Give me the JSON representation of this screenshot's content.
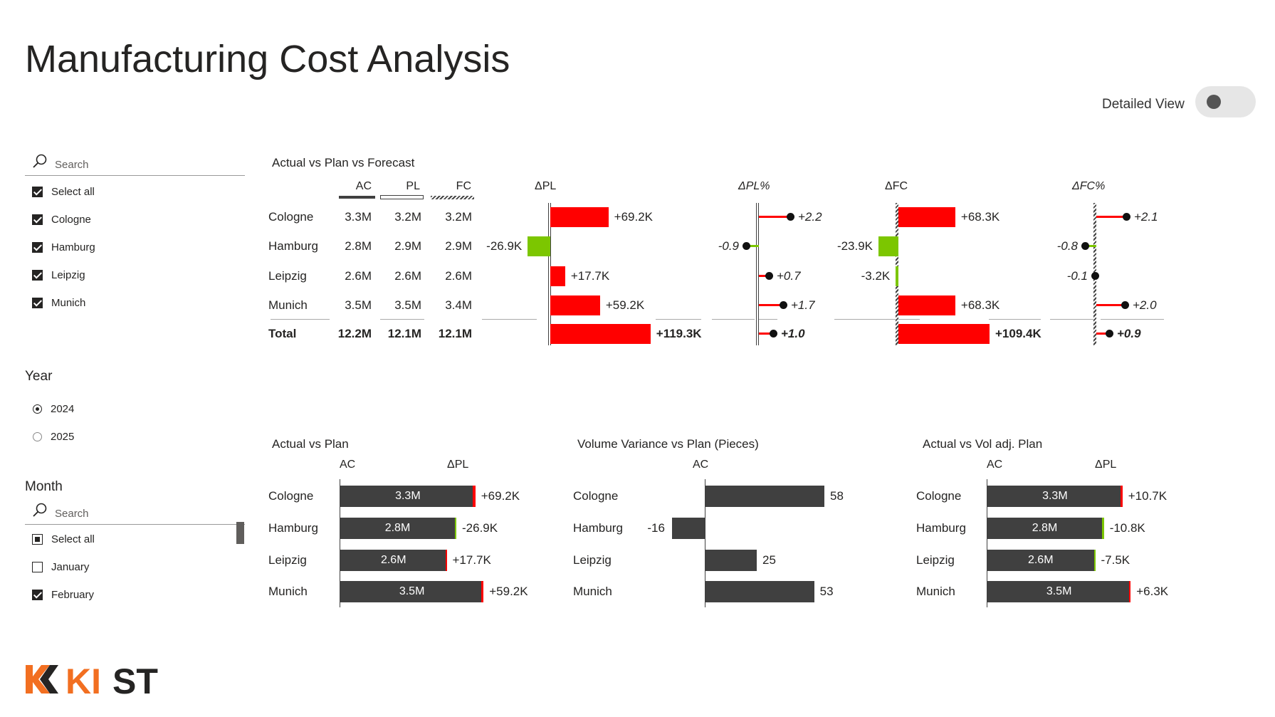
{
  "page": {
    "title": "Manufacturing Cost Analysis",
    "detailed_view_label": "Detailed View",
    "detailed_view_on": false
  },
  "city_slicer": {
    "search_placeholder": "Search",
    "items": [
      {
        "label": "Select all",
        "checked": true
      },
      {
        "label": "Cologne",
        "checked": true
      },
      {
        "label": "Hamburg",
        "checked": true
      },
      {
        "label": "Leipzig",
        "checked": true
      },
      {
        "label": "Munich",
        "checked": true
      }
    ]
  },
  "year_slicer": {
    "label": "Year",
    "options": [
      {
        "label": "2024",
        "selected": true
      },
      {
        "label": "2025",
        "selected": false
      }
    ]
  },
  "month_slicer": {
    "label": "Month",
    "search_placeholder": "Search",
    "items": [
      {
        "label": "Select all",
        "state": "partial"
      },
      {
        "label": "January",
        "state": "off"
      },
      {
        "label": "February",
        "state": "on"
      }
    ]
  },
  "colors": {
    "positive_variance": "#ff0000",
    "negative_variance": "#7cc600",
    "actual_bar": "#404040",
    "logo_orange": "#f26f21",
    "logo_dark": "#252423"
  },
  "visual1": {
    "title": "Actual vs Plan vs Forecast",
    "headers": {
      "ac": "AC",
      "pl": "PL",
      "fc": "FC",
      "dpl": "ΔPL",
      "dpl_pct": "ΔPL%",
      "dfc": "ΔFC",
      "dfc_pct": "ΔFC%"
    },
    "rows": [
      {
        "city": "Cologne",
        "ac": "3.3M",
        "pl": "3.2M",
        "fc": "3.2M",
        "dpl": 69.2,
        "dpl_label": "+69.2K",
        "dpl_pct": 2.2,
        "dpl_pct_label": "+2.2",
        "dfc": 68.3,
        "dfc_label": "+68.3K",
        "dfc_pct": 2.1,
        "dfc_pct_label": "+2.1"
      },
      {
        "city": "Hamburg",
        "ac": "2.8M",
        "pl": "2.9M",
        "fc": "2.9M",
        "dpl": -26.9,
        "dpl_label": "-26.9K",
        "dpl_pct": -0.9,
        "dpl_pct_label": "-0.9",
        "dfc": -23.9,
        "dfc_label": "-23.9K",
        "dfc_pct": -0.8,
        "dfc_pct_label": "-0.8"
      },
      {
        "city": "Leipzig",
        "ac": "2.6M",
        "pl": "2.6M",
        "fc": "2.6M",
        "dpl": 17.7,
        "dpl_label": "+17.7K",
        "dpl_pct": 0.7,
        "dpl_pct_label": "+0.7",
        "dfc": -3.2,
        "dfc_label": "-3.2K",
        "dfc_pct": -0.1,
        "dfc_pct_label": "-0.1"
      },
      {
        "city": "Munich",
        "ac": "3.5M",
        "pl": "3.5M",
        "fc": "3.4M",
        "dpl": 59.2,
        "dpl_label": "+59.2K",
        "dpl_pct": 1.7,
        "dpl_pct_label": "+1.7",
        "dfc": 68.3,
        "dfc_label": "+68.3K",
        "dfc_pct": 2.0,
        "dfc_pct_label": "+2.0"
      }
    ],
    "total": {
      "city": "Total",
      "ac": "12.2M",
      "pl": "12.1M",
      "fc": "12.1M",
      "dpl": 119.3,
      "dpl_label": "+119.3K",
      "dpl_pct": 1.0,
      "dpl_pct_label": "+1.0",
      "dfc": 109.4,
      "dfc_label": "+109.4K",
      "dfc_pct": 0.9,
      "dfc_pct_label": "+0.9"
    }
  },
  "visual2": {
    "title": "Actual vs Plan",
    "headers": {
      "ac": "AC",
      "dpl": "ΔPL"
    },
    "rows": [
      {
        "city": "Cologne",
        "ac": 3.3,
        "ac_label": "3.3M",
        "dpl": 69.2,
        "dpl_label": "+69.2K"
      },
      {
        "city": "Hamburg",
        "ac": 2.8,
        "ac_label": "2.8M",
        "dpl": -26.9,
        "dpl_label": "-26.9K"
      },
      {
        "city": "Leipzig",
        "ac": 2.6,
        "ac_label": "2.6M",
        "dpl": 17.7,
        "dpl_label": "+17.7K"
      },
      {
        "city": "Munich",
        "ac": 3.5,
        "ac_label": "3.5M",
        "dpl": 59.2,
        "dpl_label": "+59.2K"
      }
    ]
  },
  "visual3": {
    "title": "Volume Variance vs Plan (Pieces)",
    "headers": {
      "ac": "AC"
    },
    "rows": [
      {
        "city": "Cologne",
        "value": 58,
        "label": "58"
      },
      {
        "city": "Hamburg",
        "value": -16,
        "label": "-16"
      },
      {
        "city": "Leipzig",
        "value": 25,
        "label": "25"
      },
      {
        "city": "Munich",
        "value": 53,
        "label": "53"
      }
    ]
  },
  "visual4": {
    "title": "Actual vs Vol adj. Plan",
    "headers": {
      "ac": "AC",
      "dpl": "ΔPL"
    },
    "rows": [
      {
        "city": "Cologne",
        "ac": 3.3,
        "ac_label": "3.3M",
        "dpl": 10.7,
        "dpl_label": "+10.7K"
      },
      {
        "city": "Hamburg",
        "ac": 2.8,
        "ac_label": "2.8M",
        "dpl": -10.8,
        "dpl_label": "-10.8K"
      },
      {
        "city": "Leipzig",
        "ac": 2.6,
        "ac_label": "2.6M",
        "dpl": -7.5,
        "dpl_label": "-7.5K"
      },
      {
        "city": "Munich",
        "ac": 3.5,
        "ac_label": "3.5M",
        "dpl": 6.3,
        "dpl_label": "+6.3K"
      }
    ]
  },
  "logo": {
    "text_orange": "KI",
    "text_dark": "ST"
  }
}
